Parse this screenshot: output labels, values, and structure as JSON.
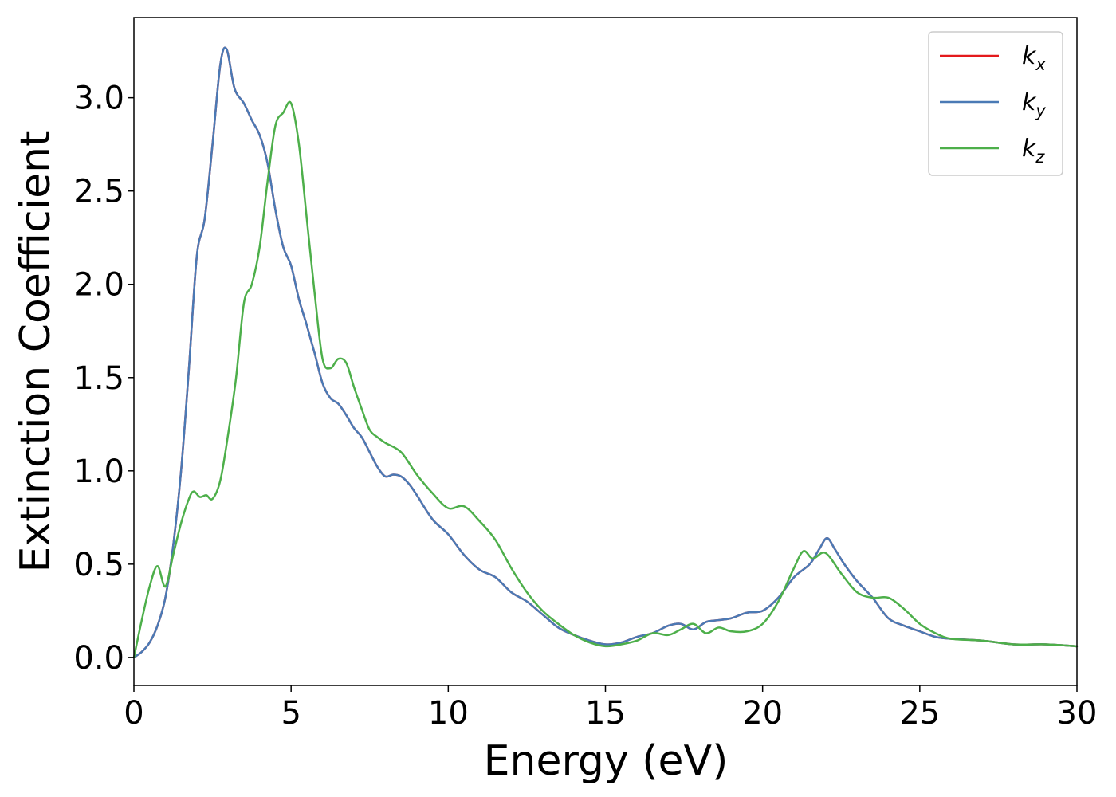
{
  "chart_data": {
    "type": "line",
    "xlabel": "Energy (eV)",
    "ylabel": "Extinction Coefficient",
    "xlim": [
      0,
      30
    ],
    "ylim": [
      -0.15,
      3.43
    ],
    "xticks": [
      0,
      5,
      10,
      15,
      20,
      25,
      30
    ],
    "xtick_labels": [
      "0",
      "5",
      "10",
      "15",
      "20",
      "25",
      "30"
    ],
    "yticks": [
      0.0,
      0.5,
      1.0,
      1.5,
      2.0,
      2.5,
      3.0
    ],
    "ytick_labels": [
      "0.0",
      "0.5",
      "1.0",
      "1.5",
      "2.0",
      "2.5",
      "3.0"
    ],
    "grid": false,
    "legend_position": "top-right",
    "series": [
      {
        "name": "k",
        "subscript": "x",
        "color": "#e41a1c",
        "x": [
          0,
          0.25,
          0.5,
          0.75,
          1.0,
          1.25,
          1.5,
          1.75,
          2.0,
          2.25,
          2.5,
          2.75,
          2.95,
          3.2,
          3.5,
          3.75,
          4.0,
          4.25,
          4.5,
          4.75,
          5.0,
          5.25,
          5.5,
          5.75,
          6.0,
          6.25,
          6.5,
          6.75,
          7.0,
          7.25,
          7.5,
          7.75,
          8.0,
          8.25,
          8.5,
          8.75,
          9.0,
          9.5,
          10.0,
          10.5,
          11.0,
          11.5,
          12.0,
          12.5,
          13.0,
          13.5,
          14.0,
          14.5,
          15.0,
          15.5,
          16.0,
          16.5,
          17.0,
          17.4,
          17.8,
          18.2,
          18.6,
          19.0,
          19.5,
          20.0,
          20.5,
          21.0,
          21.5,
          21.8,
          22.05,
          22.3,
          22.6,
          23.0,
          23.5,
          24.0,
          24.5,
          25.0,
          25.5,
          26.0,
          27.0,
          28.0,
          29.0,
          30.0
        ],
        "y": [
          0.0,
          0.03,
          0.08,
          0.17,
          0.32,
          0.6,
          1.0,
          1.55,
          2.15,
          2.35,
          2.75,
          3.18,
          3.26,
          3.05,
          2.97,
          2.88,
          2.8,
          2.65,
          2.4,
          2.2,
          2.1,
          1.92,
          1.78,
          1.63,
          1.47,
          1.39,
          1.36,
          1.3,
          1.23,
          1.18,
          1.1,
          1.02,
          0.97,
          0.98,
          0.97,
          0.93,
          0.87,
          0.74,
          0.66,
          0.55,
          0.47,
          0.43,
          0.35,
          0.3,
          0.23,
          0.16,
          0.12,
          0.09,
          0.07,
          0.08,
          0.11,
          0.13,
          0.17,
          0.18,
          0.15,
          0.19,
          0.2,
          0.21,
          0.24,
          0.25,
          0.32,
          0.43,
          0.5,
          0.58,
          0.64,
          0.58,
          0.5,
          0.41,
          0.32,
          0.21,
          0.17,
          0.14,
          0.11,
          0.1,
          0.09,
          0.07,
          0.07,
          0.06
        ]
      },
      {
        "name": "k",
        "subscript": "y",
        "color": "#4a7ab5",
        "x": [
          0,
          0.25,
          0.5,
          0.75,
          1.0,
          1.25,
          1.5,
          1.75,
          2.0,
          2.25,
          2.5,
          2.75,
          2.95,
          3.2,
          3.5,
          3.75,
          4.0,
          4.25,
          4.5,
          4.75,
          5.0,
          5.25,
          5.5,
          5.75,
          6.0,
          6.25,
          6.5,
          6.75,
          7.0,
          7.25,
          7.5,
          7.75,
          8.0,
          8.25,
          8.5,
          8.75,
          9.0,
          9.5,
          10.0,
          10.5,
          11.0,
          11.5,
          12.0,
          12.5,
          13.0,
          13.5,
          14.0,
          14.5,
          15.0,
          15.5,
          16.0,
          16.5,
          17.0,
          17.4,
          17.8,
          18.2,
          18.6,
          19.0,
          19.5,
          20.0,
          20.5,
          21.0,
          21.5,
          21.8,
          22.05,
          22.3,
          22.6,
          23.0,
          23.5,
          24.0,
          24.5,
          25.0,
          25.5,
          26.0,
          27.0,
          28.0,
          29.0,
          30.0
        ],
        "y": [
          0.0,
          0.03,
          0.08,
          0.17,
          0.32,
          0.6,
          1.0,
          1.55,
          2.15,
          2.35,
          2.75,
          3.18,
          3.26,
          3.05,
          2.97,
          2.88,
          2.8,
          2.65,
          2.4,
          2.2,
          2.1,
          1.92,
          1.78,
          1.63,
          1.47,
          1.39,
          1.36,
          1.3,
          1.23,
          1.18,
          1.1,
          1.02,
          0.97,
          0.98,
          0.97,
          0.93,
          0.87,
          0.74,
          0.66,
          0.55,
          0.47,
          0.43,
          0.35,
          0.3,
          0.23,
          0.16,
          0.12,
          0.09,
          0.07,
          0.08,
          0.11,
          0.13,
          0.17,
          0.18,
          0.15,
          0.19,
          0.2,
          0.21,
          0.24,
          0.25,
          0.32,
          0.43,
          0.5,
          0.58,
          0.64,
          0.58,
          0.5,
          0.41,
          0.32,
          0.21,
          0.17,
          0.14,
          0.11,
          0.1,
          0.09,
          0.07,
          0.07,
          0.06
        ]
      },
      {
        "name": "k",
        "subscript": "z",
        "color": "#4daf4a",
        "x": [
          0,
          0.25,
          0.5,
          0.75,
          1.0,
          1.25,
          1.5,
          1.75,
          1.9,
          2.1,
          2.3,
          2.5,
          2.75,
          3.0,
          3.25,
          3.5,
          3.75,
          4.0,
          4.25,
          4.5,
          4.75,
          5.0,
          5.25,
          5.5,
          5.75,
          6.0,
          6.25,
          6.5,
          6.75,
          7.0,
          7.25,
          7.5,
          7.75,
          8.0,
          8.5,
          9.0,
          9.5,
          10.0,
          10.5,
          11.0,
          11.5,
          12.0,
          12.5,
          13.0,
          13.5,
          14.0,
          14.5,
          15.0,
          15.5,
          16.0,
          16.5,
          17.0,
          17.4,
          17.8,
          18.2,
          18.6,
          19.0,
          19.5,
          20.0,
          20.5,
          21.0,
          21.3,
          21.6,
          22.0,
          22.5,
          23.0,
          23.5,
          24.0,
          24.5,
          25.0,
          25.5,
          26.0,
          27.0,
          28.0,
          29.0,
          30.0
        ],
        "y": [
          0.0,
          0.2,
          0.38,
          0.49,
          0.38,
          0.55,
          0.72,
          0.85,
          0.89,
          0.86,
          0.87,
          0.85,
          0.95,
          1.2,
          1.5,
          1.9,
          2.0,
          2.2,
          2.55,
          2.85,
          2.92,
          2.97,
          2.75,
          2.35,
          1.95,
          1.6,
          1.55,
          1.6,
          1.58,
          1.45,
          1.33,
          1.22,
          1.18,
          1.15,
          1.1,
          0.98,
          0.88,
          0.8,
          0.81,
          0.73,
          0.63,
          0.48,
          0.35,
          0.25,
          0.18,
          0.12,
          0.08,
          0.06,
          0.07,
          0.09,
          0.13,
          0.12,
          0.15,
          0.18,
          0.13,
          0.16,
          0.14,
          0.14,
          0.18,
          0.3,
          0.48,
          0.57,
          0.53,
          0.56,
          0.45,
          0.35,
          0.32,
          0.32,
          0.26,
          0.18,
          0.13,
          0.1,
          0.09,
          0.07,
          0.07,
          0.06
        ]
      }
    ]
  }
}
